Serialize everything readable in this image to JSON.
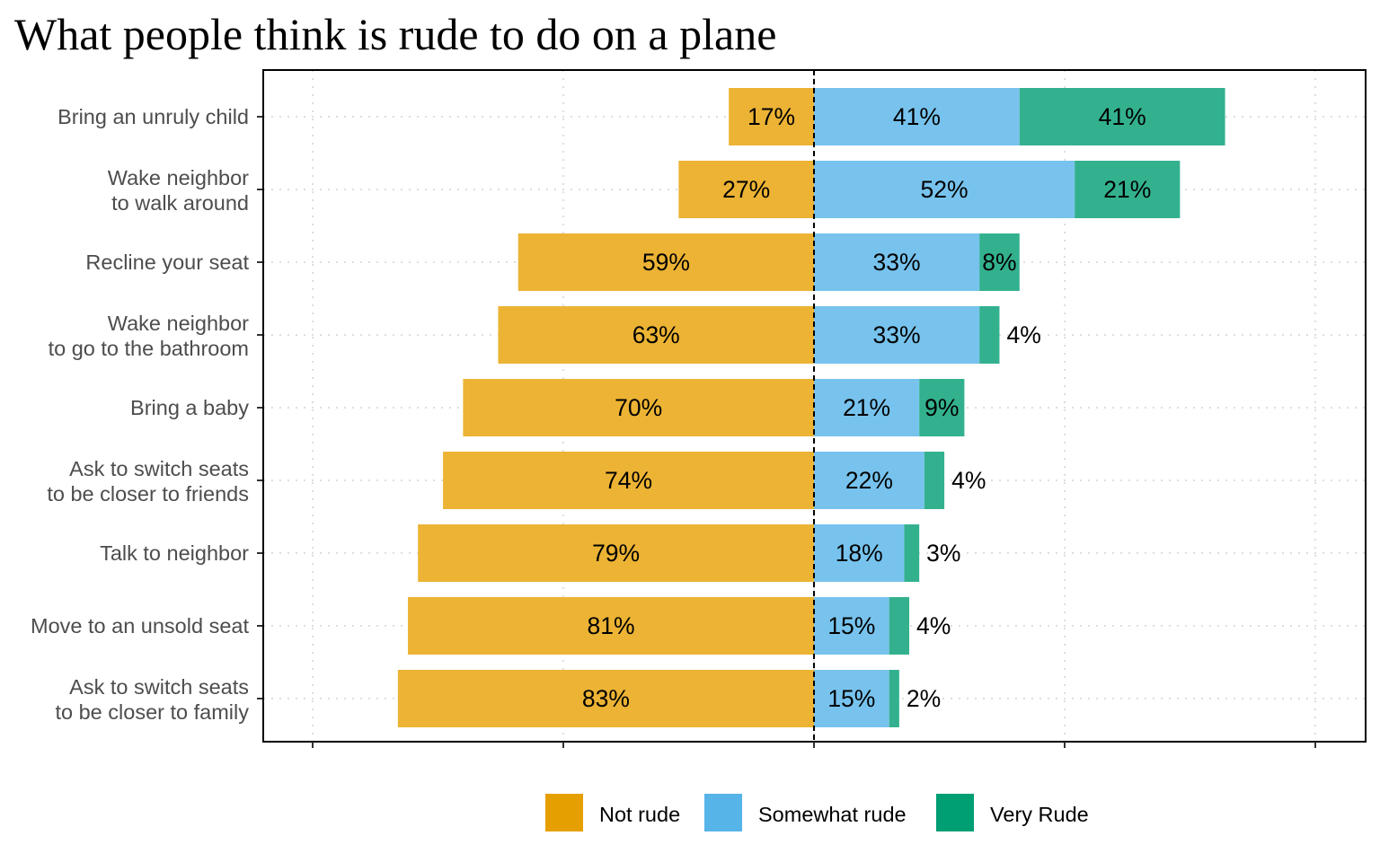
{
  "chart_data": {
    "type": "bar",
    "orientation": "horizontal",
    "stacking": "diverging",
    "title": "What people think is rude to do on a plane",
    "xlabel": "",
    "ylabel": "",
    "xlim": [
      -100,
      100
    ],
    "x_ticks": [
      -100,
      -50,
      0,
      50,
      100
    ],
    "grid": true,
    "legend_position": "bottom",
    "categories": [
      [
        "Bring an unruly child"
      ],
      [
        "Wake neighbor",
        "to walk around"
      ],
      [
        "Recline your seat"
      ],
      [
        "Wake neighbor",
        "to go to the bathroom"
      ],
      [
        "Bring a baby"
      ],
      [
        "Ask to switch seats",
        "to be closer to friends"
      ],
      [
        "Talk to neighbor"
      ],
      [
        "Move to an unsold seat"
      ],
      [
        "Ask to switch seats",
        "to be closer to family"
      ]
    ],
    "series": [
      {
        "name": "Not rude",
        "color": "#E69F00",
        "bar_color": "#ECB334",
        "side": "left",
        "values": [
          17,
          27,
          59,
          63,
          70,
          74,
          79,
          81,
          83
        ],
        "labels": [
          "17%",
          "27%",
          "59%",
          "63%",
          "70%",
          "74%",
          "79%",
          "81%",
          "83%"
        ]
      },
      {
        "name": "Somewhat rude",
        "color": "#56B4E9",
        "bar_color": "#77C3EE",
        "side": "right",
        "values": [
          41,
          52,
          33,
          33,
          21,
          22,
          18,
          15,
          15
        ],
        "labels": [
          "41%",
          "52%",
          "33%",
          "33%",
          "21%",
          "22%",
          "18%",
          "15%",
          "15%"
        ]
      },
      {
        "name": "Very Rude",
        "color": "#009E73",
        "bar_color": "#33B18F",
        "side": "right",
        "values": [
          41,
          21,
          8,
          4,
          9,
          4,
          3,
          4,
          2
        ],
        "labels": [
          "41%",
          "21%",
          "8%",
          "4%",
          "9%",
          "4%",
          "3%",
          "4%",
          "2%"
        ]
      }
    ]
  }
}
